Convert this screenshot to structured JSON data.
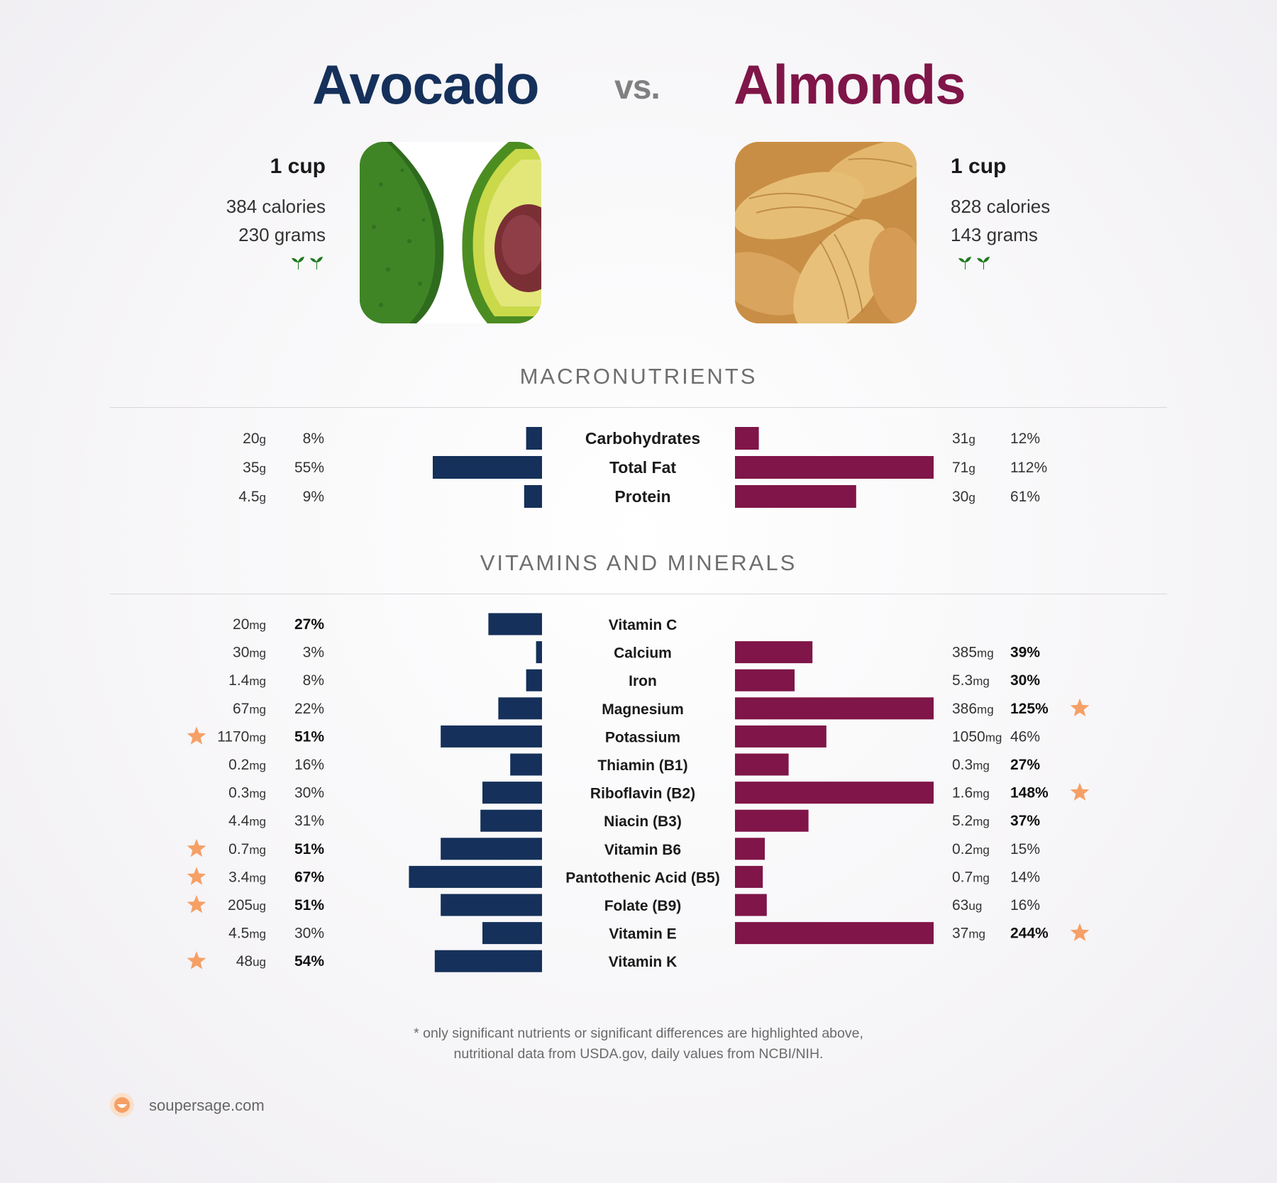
{
  "header": {
    "left_title": "Avocado",
    "vs": "vs.",
    "right_title": "Almonds"
  },
  "left": {
    "serving": "1 cup",
    "calories": "384 calories",
    "grams": "230 grams",
    "vegan_icon": "sprout-icon"
  },
  "right": {
    "serving": "1 cup",
    "calories": "828 calories",
    "grams": "143 grams",
    "vegan_icon": "sprout-icon"
  },
  "colors": {
    "left": "#15305a",
    "right": "#7f1548",
    "star": "#f5a066"
  },
  "sections": {
    "macro": "MACRONUTRIENTS",
    "vitamins": "VITAMINS AND MINERALS"
  },
  "chart_data": [
    {
      "type": "bar",
      "title": "MACRONUTRIENTS",
      "categories": [
        "Carbohydrates",
        "Total Fat",
        "Protein"
      ],
      "series": [
        {
          "name": "Avocado",
          "amount": [
            "20",
            "35",
            "4.5"
          ],
          "unit": [
            "g",
            "g",
            "g"
          ],
          "percent": [
            8,
            55,
            9
          ],
          "percent_label": [
            "8%",
            "55%",
            "9%"
          ],
          "bold": [
            false,
            false,
            false
          ],
          "star": [
            false,
            false,
            false
          ]
        },
        {
          "name": "Almonds",
          "amount": [
            "31",
            "71",
            "30"
          ],
          "unit": [
            "g",
            "g",
            "g"
          ],
          "percent": [
            12,
            112,
            61
          ],
          "percent_label": [
            "12%",
            "112%",
            "61%"
          ],
          "bold": [
            false,
            false,
            false
          ],
          "star": [
            false,
            false,
            false
          ]
        }
      ]
    },
    {
      "type": "bar",
      "title": "VITAMINS AND MINERALS",
      "categories": [
        "Vitamin C",
        "Calcium",
        "Iron",
        "Magnesium",
        "Potassium",
        "Thiamin (B1)",
        "Riboflavin (B2)",
        "Niacin (B3)",
        "Vitamin B6",
        "Pantothenic Acid (B5)",
        "Folate (B9)",
        "Vitamin E",
        "Vitamin K"
      ],
      "series": [
        {
          "name": "Avocado",
          "amount": [
            "20",
            "30",
            "1.4",
            "67",
            "1170",
            "0.2",
            "0.3",
            "4.4",
            "0.7",
            "3.4",
            "205",
            "4.5",
            "48"
          ],
          "unit": [
            "mg",
            "mg",
            "mg",
            "mg",
            "mg",
            "mg",
            "mg",
            "mg",
            "mg",
            "mg",
            "ug",
            "mg",
            "ug"
          ],
          "percent": [
            27,
            3,
            8,
            22,
            51,
            16,
            30,
            31,
            51,
            67,
            51,
            30,
            54
          ],
          "percent_label": [
            "27%",
            "3%",
            "8%",
            "22%",
            "51%",
            "16%",
            "30%",
            "31%",
            "51%",
            "67%",
            "51%",
            "30%",
            "54%"
          ],
          "bold": [
            true,
            false,
            false,
            false,
            true,
            false,
            false,
            false,
            true,
            true,
            true,
            false,
            true
          ],
          "star": [
            false,
            false,
            false,
            false,
            true,
            false,
            false,
            false,
            true,
            true,
            true,
            false,
            true
          ]
        },
        {
          "name": "Almonds",
          "amount": [
            "",
            "385",
            "5.3",
            "386",
            "1050",
            "0.3",
            "1.6",
            "5.2",
            "0.2",
            "0.7",
            "63",
            "37",
            ""
          ],
          "unit": [
            "",
            "mg",
            "mg",
            "mg",
            "mg",
            "mg",
            "mg",
            "mg",
            "mg",
            "mg",
            "ug",
            "mg",
            ""
          ],
          "percent": [
            0,
            39,
            30,
            125,
            46,
            27,
            148,
            37,
            15,
            14,
            16,
            244,
            0
          ],
          "percent_label": [
            "",
            "39%",
            "30%",
            "125%",
            "46%",
            "27%",
            "148%",
            "37%",
            "15%",
            "14%",
            "16%",
            "244%",
            ""
          ],
          "bold": [
            false,
            true,
            true,
            true,
            false,
            true,
            true,
            true,
            false,
            false,
            false,
            true,
            false
          ],
          "star": [
            false,
            false,
            false,
            true,
            false,
            false,
            true,
            false,
            false,
            false,
            false,
            true,
            false
          ]
        }
      ]
    }
  ],
  "footer": {
    "note_line1": "* only significant nutrients or significant differences are highlighted above,",
    "note_line2": "nutritional data from USDA.gov, daily values from NCBI/NIH.",
    "brand": "soupersage.com",
    "brand_icon": "soupersage-logo-icon"
  }
}
